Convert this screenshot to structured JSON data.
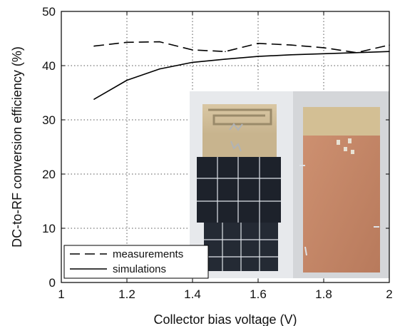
{
  "chart_data": {
    "type": "line",
    "xlabel": "Collector bias voltage (V)",
    "ylabel": "DC-to-RF conversion efficiency (%)",
    "xlim": [
      1,
      2
    ],
    "ylim": [
      0,
      50
    ],
    "xticks": [
      "1",
      "1.2",
      "1.4",
      "1.6",
      "1.8",
      "2"
    ],
    "yticks": [
      "0",
      "10",
      "20",
      "30",
      "40",
      "50"
    ],
    "grid": true,
    "legend_placement": "bottom-left",
    "series": [
      {
        "name": "measurements",
        "style": "dashed",
        "color": "#000000",
        "x": [
          1.1,
          1.2,
          1.3,
          1.4,
          1.5,
          1.6,
          1.7,
          1.8,
          1.9,
          2.0
        ],
        "y": [
          43.6,
          44.3,
          44.4,
          42.9,
          42.6,
          44.1,
          43.8,
          43.3,
          42.4,
          43.8
        ]
      },
      {
        "name": "simulations",
        "style": "solid",
        "color": "#000000",
        "x": [
          1.1,
          1.2,
          1.3,
          1.4,
          1.5,
          1.6,
          1.7,
          1.8,
          1.9,
          2.0
        ],
        "y": [
          33.8,
          37.3,
          39.4,
          40.6,
          41.2,
          41.7,
          42.0,
          42.2,
          42.4,
          42.6
        ]
      }
    ],
    "inset": "photo-of-prototype-front-and-back"
  }
}
